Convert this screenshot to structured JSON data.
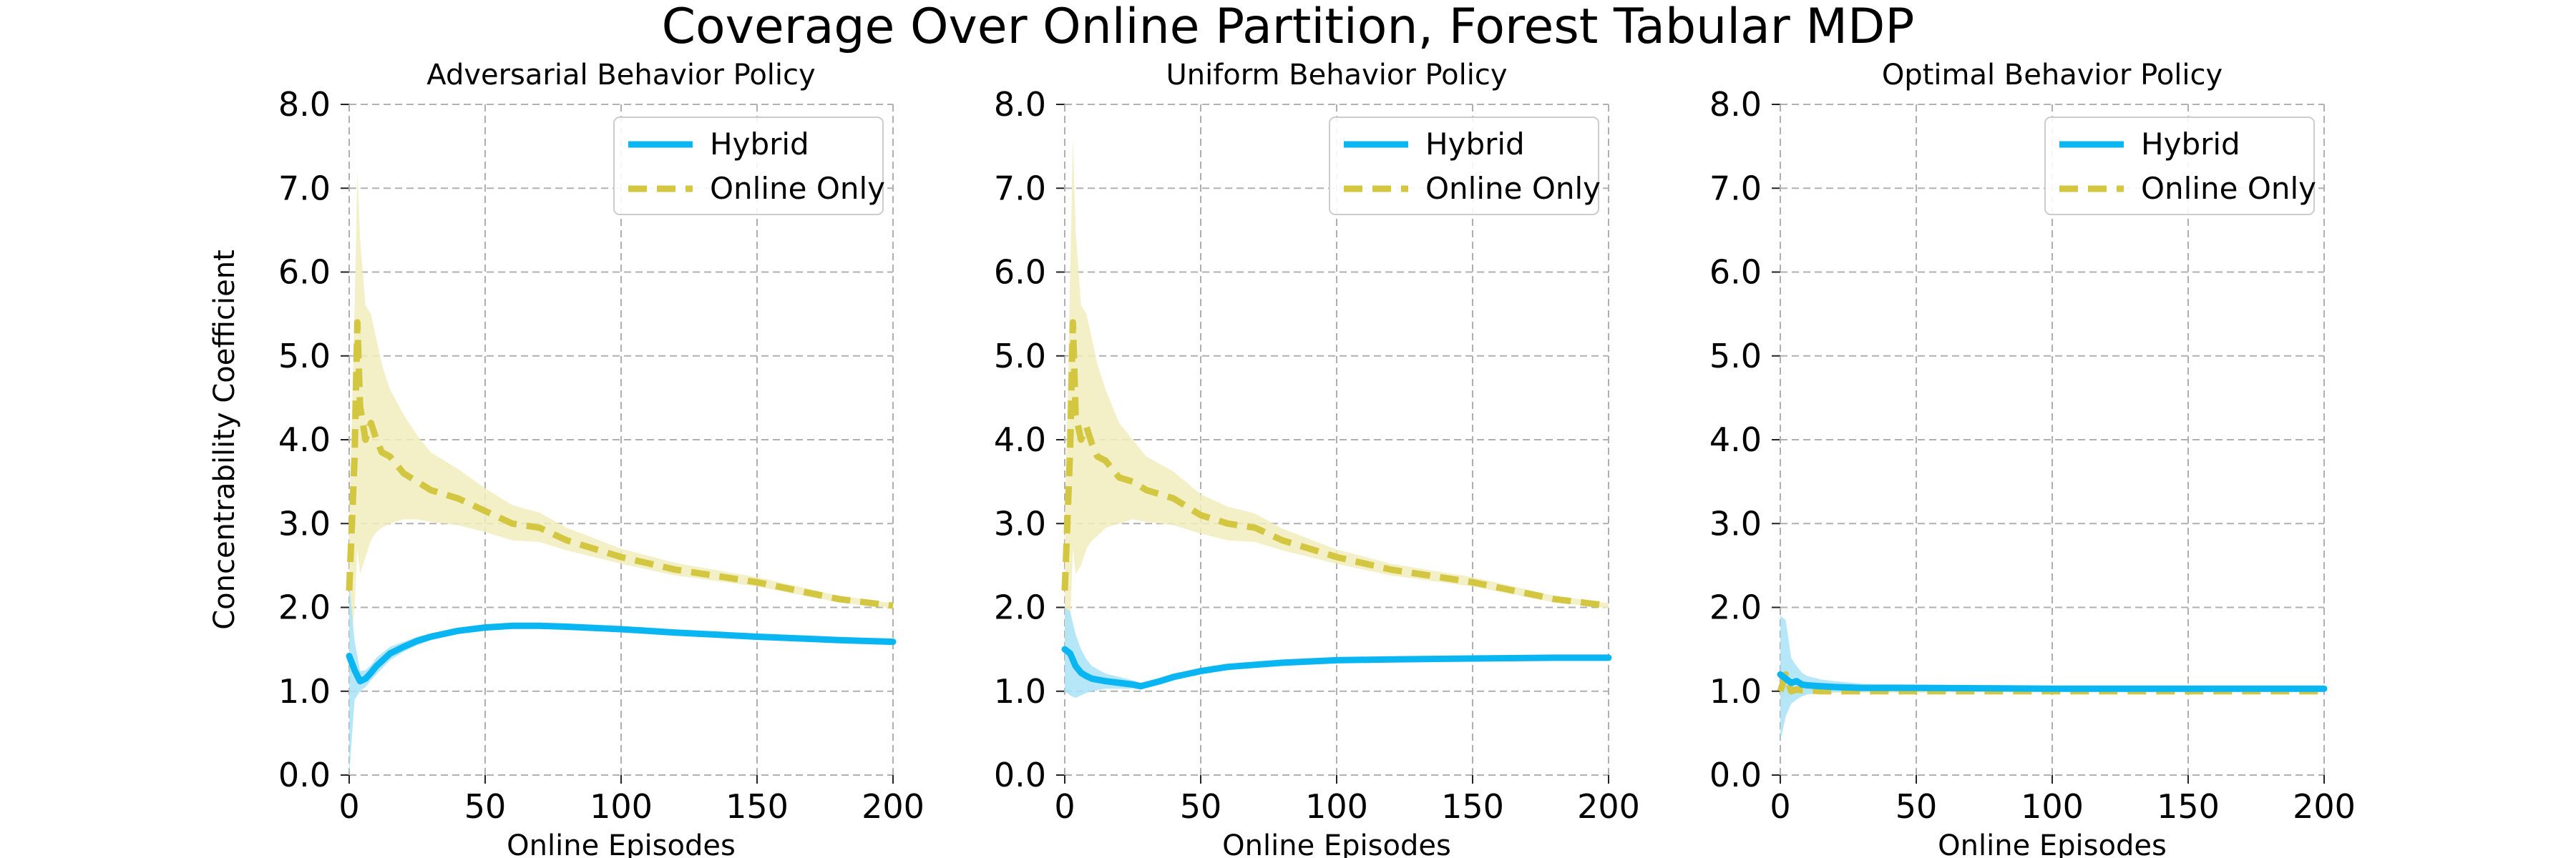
{
  "suptitle": "Coverage Over Online Partition, Forest Tabular MDP",
  "colors": {
    "hybrid": "#0ab6f2",
    "online": "#d3c640",
    "hybrid_band": "#a9e3f8",
    "online_band": "#f1ecbc"
  },
  "chart_data": [
    {
      "type": "line",
      "title": "Adversarial Behavior Policy",
      "xlabel": "Online Episodes",
      "ylabel": "Concentrability Coefficient",
      "xlim": [
        0,
        200
      ],
      "ylim": [
        0,
        8
      ],
      "xticks": [
        "0",
        "50",
        "100",
        "150",
        "200"
      ],
      "yticks": [
        "0.0",
        "1.0",
        "2.0",
        "3.0",
        "4.0",
        "5.0",
        "6.0",
        "7.0",
        "8.0"
      ],
      "grid": true,
      "legend": "top-right",
      "series": [
        {
          "name": "Hybrid",
          "style": "solid",
          "x": [
            0,
            2,
            4,
            6,
            8,
            10,
            15,
            20,
            25,
            30,
            40,
            50,
            60,
            70,
            80,
            100,
            120,
            150,
            180,
            200
          ],
          "y": [
            1.42,
            1.25,
            1.12,
            1.15,
            1.22,
            1.3,
            1.45,
            1.53,
            1.6,
            1.65,
            1.72,
            1.76,
            1.78,
            1.78,
            1.77,
            1.74,
            1.7,
            1.65,
            1.61,
            1.59
          ],
          "lower": [
            0.0,
            0.9,
            1.0,
            1.05,
            1.13,
            1.2,
            1.37,
            1.47,
            1.55,
            1.61,
            1.69,
            1.73,
            1.75,
            1.75,
            1.74,
            1.72,
            1.68,
            1.63,
            1.59,
            1.58
          ],
          "upper": [
            2.3,
            1.6,
            1.24,
            1.25,
            1.31,
            1.4,
            1.53,
            1.59,
            1.65,
            1.69,
            1.75,
            1.79,
            1.81,
            1.81,
            1.8,
            1.76,
            1.72,
            1.67,
            1.63,
            1.61
          ]
        },
        {
          "name": "Online Only",
          "style": "dashed",
          "x": [
            0,
            2,
            3,
            4,
            6,
            8,
            10,
            12,
            15,
            20,
            25,
            30,
            40,
            50,
            60,
            70,
            80,
            100,
            120,
            150,
            180,
            200
          ],
          "y": [
            2.2,
            3.8,
            5.4,
            4.4,
            4.0,
            4.2,
            4.0,
            3.85,
            3.8,
            3.6,
            3.5,
            3.4,
            3.3,
            3.15,
            3.0,
            2.95,
            2.8,
            2.6,
            2.45,
            2.3,
            2.1,
            2.02
          ],
          "lower": [
            1.4,
            2.0,
            2.7,
            2.4,
            2.6,
            2.8,
            2.9,
            2.95,
            3.0,
            3.05,
            3.05,
            3.02,
            2.98,
            2.9,
            2.8,
            2.78,
            2.68,
            2.52,
            2.38,
            2.25,
            2.06,
            1.99
          ],
          "upper": [
            3.0,
            5.6,
            7.2,
            6.4,
            5.6,
            5.5,
            5.2,
            4.9,
            4.6,
            4.3,
            4.05,
            3.85,
            3.65,
            3.42,
            3.22,
            3.13,
            2.95,
            2.7,
            2.53,
            2.36,
            2.14,
            2.05
          ]
        }
      ]
    },
    {
      "type": "line",
      "title": "Uniform Behavior Policy",
      "xlabel": "Online Episodes",
      "ylabel": "",
      "xlim": [
        0,
        200
      ],
      "ylim": [
        0,
        8
      ],
      "xticks": [
        "0",
        "50",
        "100",
        "150",
        "200"
      ],
      "yticks": [
        "0.0",
        "1.0",
        "2.0",
        "3.0",
        "4.0",
        "5.0",
        "6.0",
        "7.0",
        "8.0"
      ],
      "grid": true,
      "legend": "top-right",
      "series": [
        {
          "name": "Hybrid",
          "style": "solid",
          "x": [
            0,
            2,
            4,
            6,
            8,
            10,
            15,
            20,
            25,
            28,
            35,
            40,
            50,
            60,
            80,
            100,
            120,
            150,
            180,
            200
          ],
          "y": [
            1.5,
            1.45,
            1.3,
            1.22,
            1.18,
            1.15,
            1.12,
            1.1,
            1.08,
            1.06,
            1.12,
            1.17,
            1.24,
            1.29,
            1.34,
            1.37,
            1.38,
            1.39,
            1.4,
            1.4
          ],
          "lower": [
            1.0,
            0.95,
            0.92,
            0.95,
            0.98,
            1.0,
            1.03,
            1.03,
            1.03,
            1.02,
            1.09,
            1.14,
            1.21,
            1.27,
            1.32,
            1.35,
            1.36,
            1.37,
            1.38,
            1.38
          ],
          "upper": [
            2.0,
            1.95,
            1.68,
            1.5,
            1.38,
            1.3,
            1.21,
            1.17,
            1.13,
            1.1,
            1.15,
            1.2,
            1.27,
            1.31,
            1.36,
            1.39,
            1.4,
            1.41,
            1.42,
            1.42
          ]
        },
        {
          "name": "Online Only",
          "style": "dashed",
          "x": [
            0,
            2,
            3,
            4,
            6,
            8,
            10,
            12,
            15,
            20,
            25,
            30,
            40,
            50,
            60,
            70,
            80,
            100,
            120,
            150,
            180,
            200
          ],
          "y": [
            2.2,
            3.9,
            5.4,
            4.3,
            4.0,
            4.15,
            3.95,
            3.8,
            3.75,
            3.55,
            3.5,
            3.4,
            3.3,
            3.1,
            3.0,
            2.95,
            2.8,
            2.6,
            2.45,
            2.3,
            2.1,
            2.02
          ],
          "lower": [
            1.4,
            1.8,
            2.7,
            2.4,
            2.5,
            2.7,
            2.8,
            2.85,
            2.95,
            3.0,
            3.05,
            3.02,
            2.98,
            2.88,
            2.8,
            2.78,
            2.68,
            2.52,
            2.38,
            2.25,
            2.06,
            1.99
          ],
          "upper": [
            3.0,
            6.0,
            7.6,
            6.5,
            5.6,
            5.5,
            5.2,
            4.9,
            4.6,
            4.2,
            4.0,
            3.8,
            3.62,
            3.35,
            3.2,
            3.12,
            2.94,
            2.69,
            2.52,
            2.36,
            2.14,
            2.05
          ]
        }
      ]
    },
    {
      "type": "line",
      "title": "Optimal Behavior Policy",
      "xlabel": "Online Episodes",
      "ylabel": "",
      "xlim": [
        0,
        200
      ],
      "ylim": [
        0,
        8
      ],
      "xticks": [
        "0",
        "50",
        "100",
        "150",
        "200"
      ],
      "yticks": [
        "0.0",
        "1.0",
        "2.0",
        "3.0",
        "4.0",
        "5.0",
        "6.0",
        "7.0",
        "8.0"
      ],
      "grid": true,
      "legend": "top-right",
      "series": [
        {
          "name": "Hybrid",
          "style": "solid",
          "x": [
            0,
            2,
            4,
            6,
            8,
            10,
            15,
            20,
            30,
            50,
            100,
            150,
            200
          ],
          "y": [
            1.2,
            1.15,
            1.1,
            1.12,
            1.08,
            1.07,
            1.06,
            1.05,
            1.04,
            1.04,
            1.03,
            1.03,
            1.03
          ],
          "lower": [
            0.4,
            0.7,
            0.85,
            0.9,
            0.94,
            0.96,
            0.98,
            0.99,
            1.0,
            1.01,
            1.01,
            1.01,
            1.01
          ],
          "upper": [
            1.9,
            1.85,
            1.4,
            1.3,
            1.22,
            1.18,
            1.14,
            1.12,
            1.09,
            1.08,
            1.06,
            1.05,
            1.05
          ]
        },
        {
          "name": "Online Only",
          "style": "dashed",
          "x": [
            0,
            2,
            4,
            6,
            8,
            10,
            15,
            20,
            30,
            50,
            100,
            150,
            200
          ],
          "y": [
            1.0,
            1.2,
            1.0,
            1.02,
            1.01,
            1.01,
            1.0,
            1.0,
            1.0,
            1.0,
            1.0,
            1.0,
            1.0
          ],
          "lower": [
            0.9,
            0.95,
            0.95,
            0.97,
            0.98,
            0.98,
            0.98,
            0.98,
            0.98,
            0.98,
            0.99,
            0.99,
            0.99
          ],
          "upper": [
            1.1,
            1.3,
            1.05,
            1.06,
            1.04,
            1.04,
            1.03,
            1.03,
            1.02,
            1.02,
            1.01,
            1.01,
            1.01
          ]
        }
      ]
    }
  ]
}
